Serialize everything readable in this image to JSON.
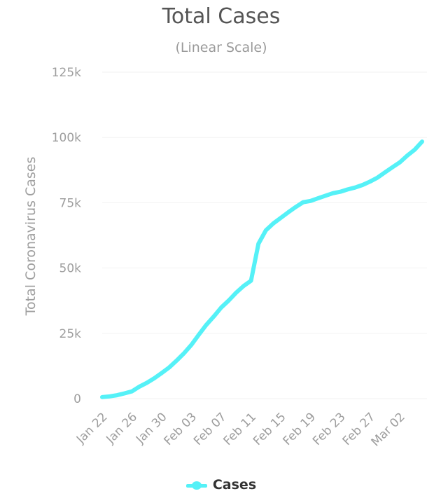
{
  "chart_data": {
    "type": "line",
    "title": "Total Cases",
    "subtitle": "(Linear Scale)",
    "xlabel": "",
    "ylabel": "Total Coronavirus Cases",
    "ylim": [
      0,
      125000
    ],
    "y_ticks": [
      "0",
      "25k",
      "50k",
      "75k",
      "100k",
      "125k"
    ],
    "x_tick_labels": [
      "Jan 22",
      "Jan 26",
      "Jan 30",
      "Feb 03",
      "Feb 07",
      "Feb 11",
      "Feb 15",
      "Feb 19",
      "Feb 23",
      "Feb 27",
      "Mar 02"
    ],
    "grid": true,
    "legend_position": "bottom",
    "series_color": "#55f1f7",
    "categories": [
      "Jan 22",
      "Jan 23",
      "Jan 24",
      "Jan 25",
      "Jan 26",
      "Jan 27",
      "Jan 28",
      "Jan 29",
      "Jan 30",
      "Jan 31",
      "Feb 01",
      "Feb 02",
      "Feb 03",
      "Feb 04",
      "Feb 05",
      "Feb 06",
      "Feb 07",
      "Feb 08",
      "Feb 09",
      "Feb 10",
      "Feb 11",
      "Feb 12",
      "Feb 13",
      "Feb 14",
      "Feb 15",
      "Feb 16",
      "Feb 17",
      "Feb 18",
      "Feb 19",
      "Feb 20",
      "Feb 21",
      "Feb 22",
      "Feb 23",
      "Feb 24",
      "Feb 25",
      "Feb 26",
      "Feb 27",
      "Feb 28",
      "Feb 29",
      "Mar 01",
      "Mar 02",
      "Mar 03",
      "Mar 04",
      "Mar 05"
    ],
    "series": [
      {
        "name": "Cases",
        "values": [
          580,
          845,
          1317,
          2015,
          2800,
          4581,
          6058,
          7813,
          9823,
          11950,
          14553,
          17391,
          20630,
          24545,
          28276,
          31439,
          34876,
          37552,
          40553,
          43099,
          45134,
          59287,
          64438,
          67100,
          69197,
          71329,
          73332,
          75184,
          75700,
          76677,
          77673,
          78651,
          79205,
          80087,
          80828,
          81820,
          83112,
          84615,
          86604,
          88585,
          90443,
          93016,
          95314,
          98425
        ]
      }
    ]
  }
}
